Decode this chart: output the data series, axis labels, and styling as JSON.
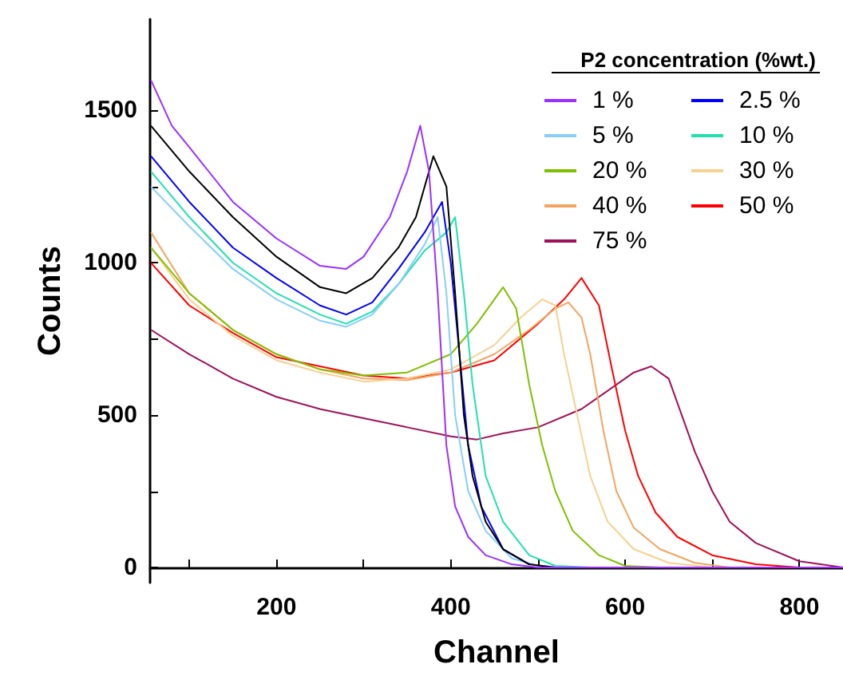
{
  "chart_data": {
    "type": "line",
    "xlabel": "Channel",
    "ylabel": "Counts",
    "legend_title": "P2 concentration (%wt.)",
    "legend": "top right",
    "grid": false,
    "marker": "none",
    "line_style": "solid",
    "xlim": [
      55,
      850
    ],
    "ylim": [
      -50,
      1800
    ],
    "xticks": [
      {
        "value": 100,
        "label": null
      },
      200,
      {
        "value": 300,
        "label": null
      },
      400,
      {
        "value": 500,
        "label": null
      },
      600,
      {
        "value": 700,
        "label": null
      },
      800
    ],
    "yticks": [
      0,
      {
        "value": 250,
        "label": null
      },
      500,
      {
        "value": 750,
        "label": null
      },
      1000,
      {
        "value": 1250,
        "label": null
      },
      1500
    ],
    "series": [
      {
        "name": "75 %",
        "color": "#a0105a",
        "x": [
          56,
          100,
          150,
          200,
          250,
          300,
          350,
          400,
          430,
          460,
          500,
          550,
          580,
          610,
          630,
          650,
          665,
          680,
          700,
          720,
          750,
          800,
          850
        ],
        "values": [
          780,
          700,
          620,
          560,
          520,
          490,
          460,
          430,
          420,
          440,
          460,
          520,
          580,
          640,
          660,
          620,
          500,
          380,
          250,
          150,
          80,
          20,
          0
        ]
      },
      {
        "name": "50 %",
        "color": "#ff0000",
        "x": [
          56,
          100,
          150,
          200,
          250,
          300,
          350,
          400,
          450,
          500,
          530,
          550,
          570,
          585,
          600,
          615,
          635,
          660,
          700,
          750,
          800,
          850
        ],
        "values": [
          1000,
          860,
          770,
          690,
          660,
          630,
          620,
          640,
          680,
          800,
          880,
          950,
          860,
          650,
          450,
          300,
          180,
          100,
          40,
          10,
          0,
          0
        ]
      },
      {
        "name": "40 %",
        "color": "#f4a460",
        "x": [
          56,
          100,
          150,
          200,
          250,
          300,
          350,
          400,
          450,
          490,
          520,
          535,
          550,
          560,
          575,
          590,
          610,
          640,
          680,
          720,
          850
        ],
        "values": [
          1100,
          900,
          780,
          700,
          650,
          620,
          615,
          640,
          700,
          780,
          850,
          870,
          820,
          700,
          450,
          250,
          130,
          60,
          15,
          0,
          0
        ]
      },
      {
        "name": "30 %",
        "color": "#f8d090",
        "x": [
          56,
          100,
          150,
          200,
          250,
          300,
          350,
          400,
          450,
          480,
          505,
          520,
          530,
          545,
          560,
          580,
          610,
          650,
          700,
          850
        ],
        "values": [
          1050,
          880,
          760,
          680,
          640,
          610,
          620,
          650,
          730,
          820,
          880,
          860,
          700,
          500,
          300,
          150,
          60,
          15,
          0,
          0
        ]
      },
      {
        "name": "20 %",
        "color": "#80c000",
        "x": [
          56,
          100,
          150,
          200,
          250,
          300,
          350,
          400,
          430,
          460,
          475,
          490,
          505,
          520,
          540,
          570,
          600,
          640,
          850
        ],
        "values": [
          1050,
          900,
          780,
          700,
          650,
          630,
          640,
          700,
          800,
          920,
          850,
          600,
          400,
          250,
          120,
          40,
          5,
          0,
          0
        ]
      },
      {
        "name": "10 %",
        "color": "#20e0b0",
        "x": [
          56,
          100,
          150,
          200,
          250,
          280,
          310,
          340,
          370,
          395,
          405,
          415,
          425,
          440,
          460,
          490,
          520,
          560,
          850
        ],
        "values": [
          1300,
          1150,
          1000,
          900,
          830,
          800,
          840,
          930,
          1040,
          1100,
          1150,
          900,
          600,
          300,
          150,
          40,
          5,
          0,
          0
        ]
      },
      {
        "name": "5 %",
        "color": "#87cefa",
        "x": [
          56,
          100,
          150,
          200,
          250,
          280,
          310,
          340,
          370,
          385,
          395,
          405,
          420,
          440,
          470,
          500,
          530,
          850
        ],
        "values": [
          1250,
          1120,
          980,
          880,
          810,
          790,
          830,
          930,
          1060,
          1150,
          900,
          500,
          250,
          120,
          30,
          5,
          0,
          0
        ]
      },
      {
        "name": "2.5 %",
        "color": "#0000ff",
        "x": [
          56,
          100,
          150,
          200,
          250,
          280,
          310,
          340,
          370,
          390,
          400,
          410,
          420,
          435,
          460,
          490
        ],
        "values": [
          1350,
          1200,
          1050,
          950,
          860,
          830,
          870,
          980,
          1100,
          1200,
          1000,
          700,
          400,
          200,
          60,
          10
        ]
      },
      {
        "color": "#000000",
        "x": [
          56,
          100,
          150,
          200,
          250,
          280,
          310,
          340,
          360,
          380,
          395,
          405,
          415,
          425,
          440,
          460,
          490,
          520,
          850
        ],
        "values": [
          1450,
          1300,
          1150,
          1020,
          920,
          900,
          950,
          1050,
          1150,
          1350,
          1250,
          900,
          500,
          300,
          150,
          60,
          10,
          0,
          0
        ]
      },
      {
        "name": "1 %",
        "color": "#9b30ff",
        "x": [
          56,
          80,
          100,
          150,
          200,
          250,
          280,
          300,
          330,
          350,
          365,
          375,
          385,
          395,
          405,
          420,
          440,
          470,
          500,
          850
        ],
        "values": [
          1600,
          1450,
          1380,
          1200,
          1080,
          990,
          980,
          1020,
          1150,
          1300,
          1450,
          1300,
          900,
          400,
          200,
          100,
          40,
          10,
          0,
          0
        ]
      }
    ]
  }
}
